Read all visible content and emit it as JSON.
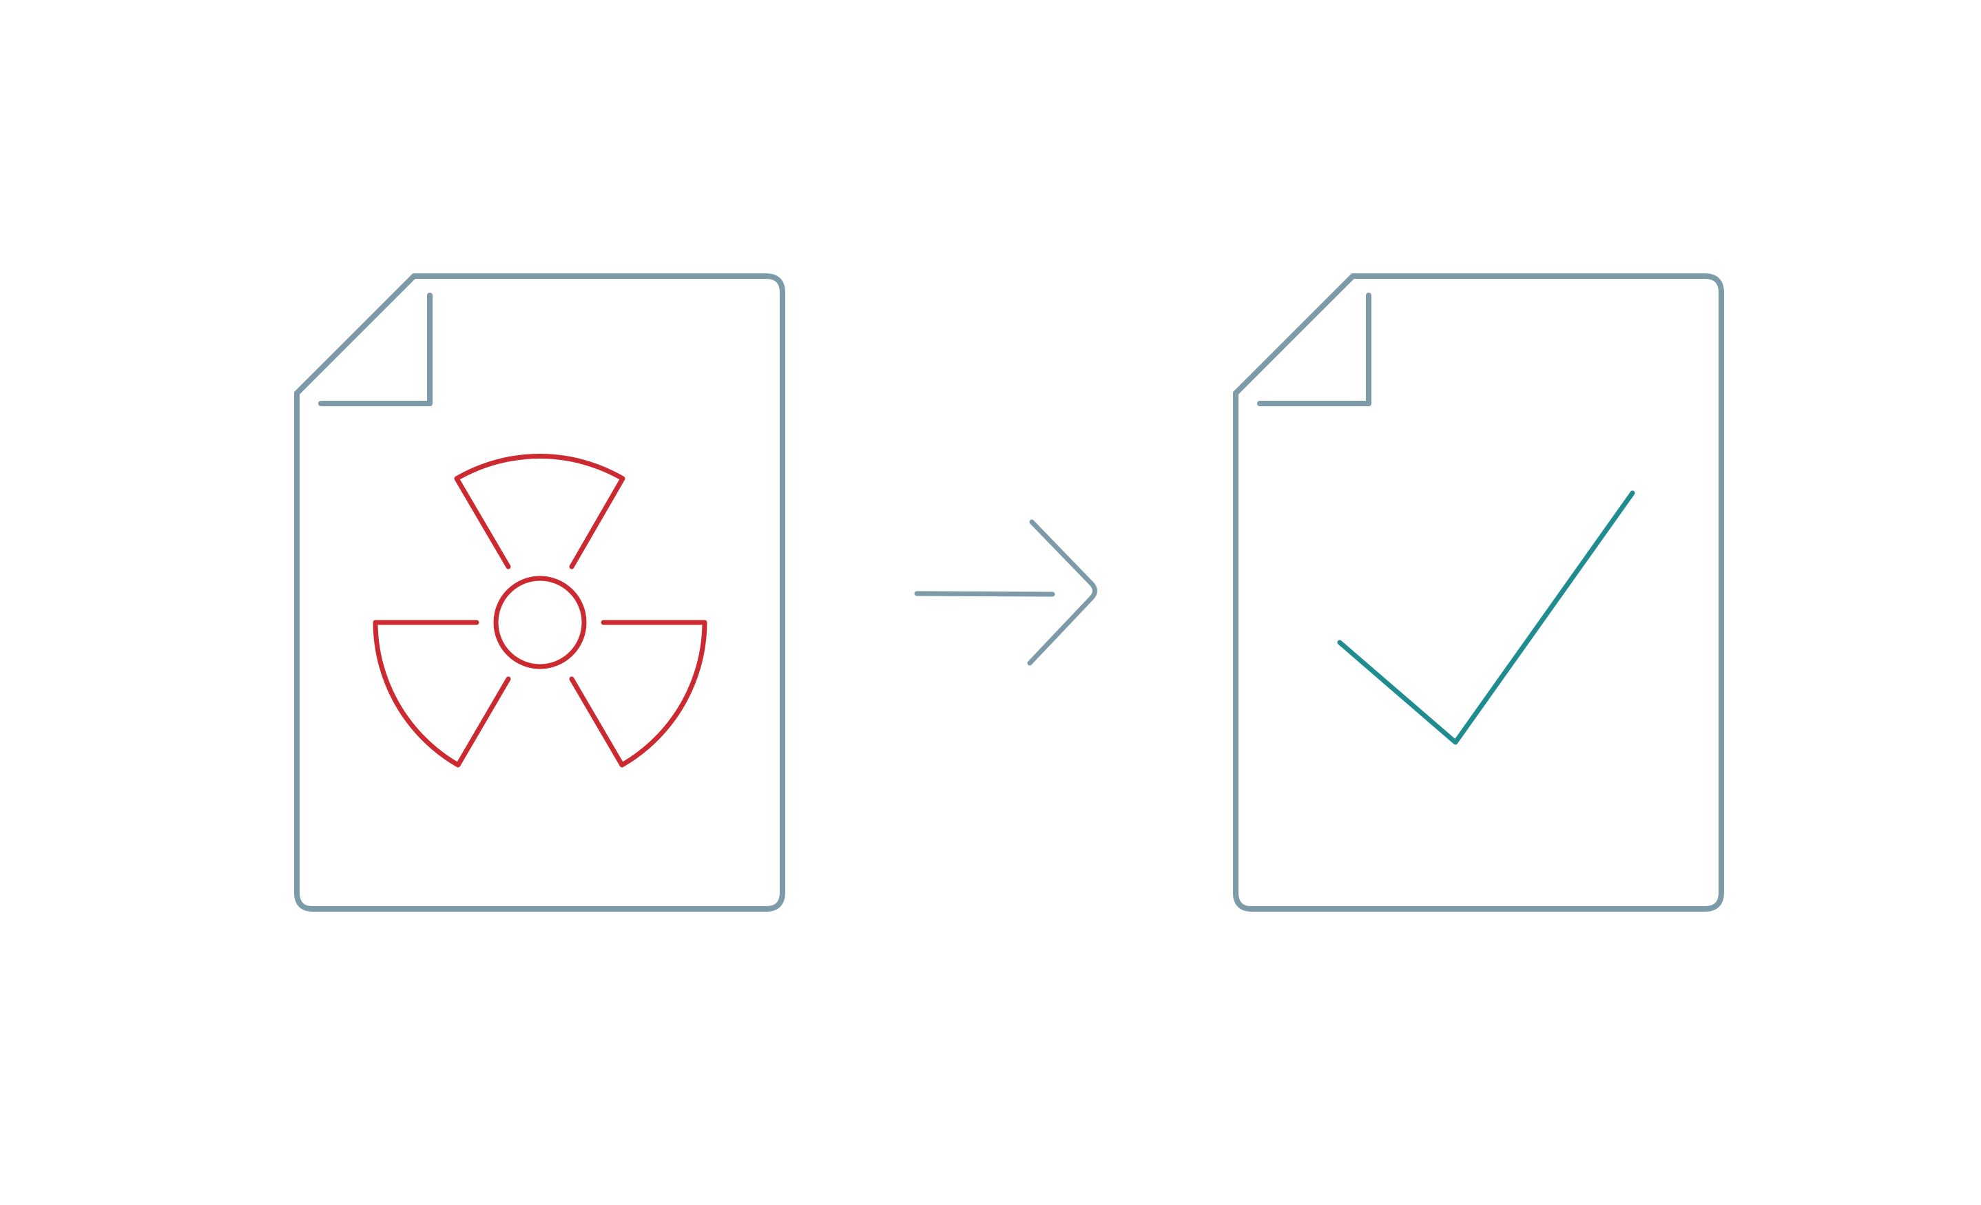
{
  "colors": {
    "background": "#ffffff",
    "document_outline": "#7d9aa8",
    "arrow": "#7d9aa8",
    "hazard": "#cc2a31",
    "check": "#1f8d90"
  },
  "icons": {
    "source_document": "document-icon",
    "source_symbol": "radiation-hazard-icon",
    "transition": "arrow-right-icon",
    "result_document": "document-icon",
    "result_symbol": "checkmark-icon"
  }
}
